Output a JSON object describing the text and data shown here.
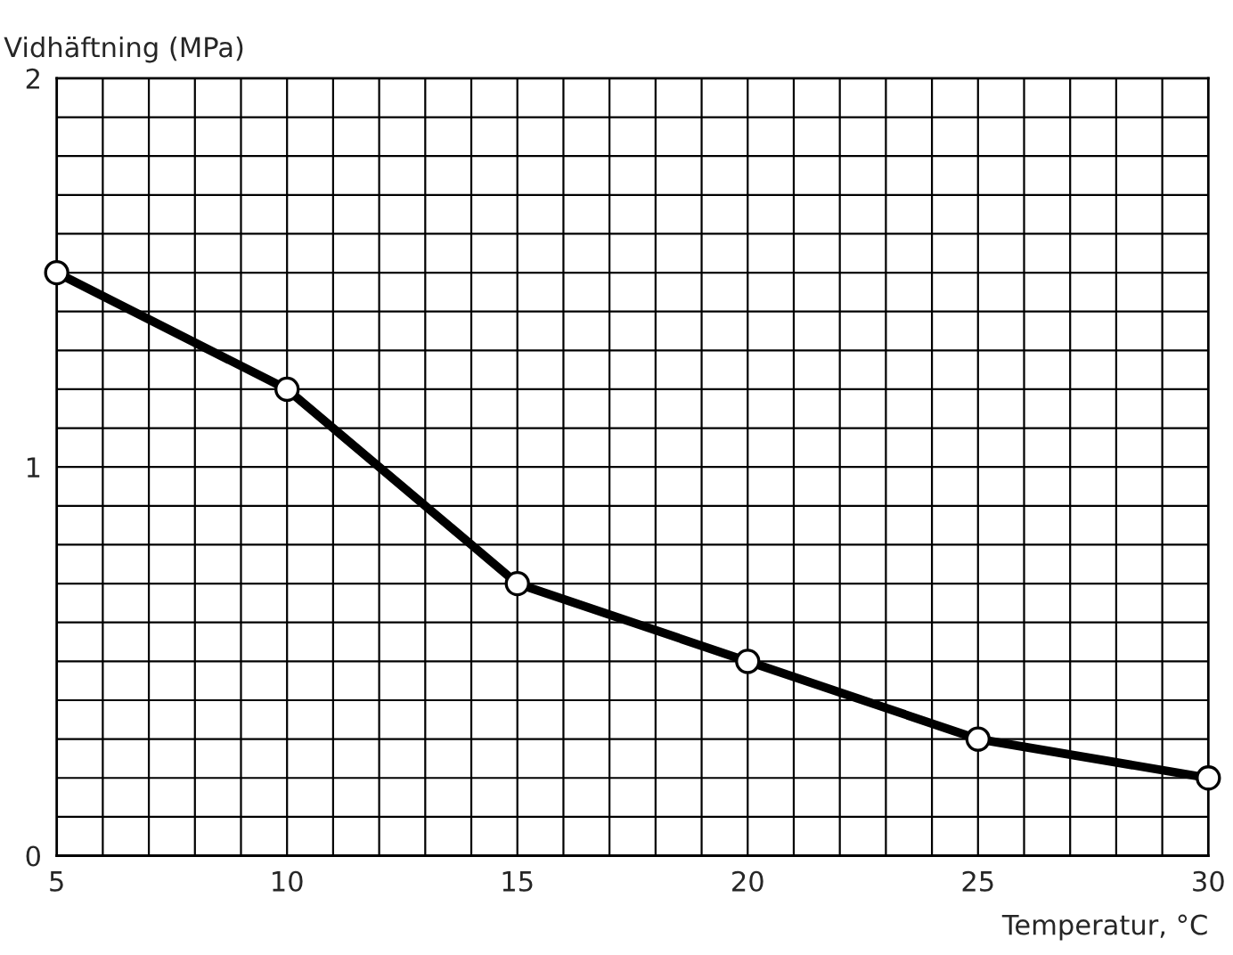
{
  "chart_data": {
    "type": "line",
    "xlabel": "Temperatur, °C",
    "ylabel": "Vidhäftning (MPa)",
    "x": [
      5,
      10,
      15,
      20,
      25,
      30
    ],
    "series": [
      {
        "color": "#000000",
        "values": [
          1.5,
          1.2,
          0.7,
          0.5,
          0.3,
          0.2
        ]
      }
    ],
    "marker": "circle",
    "line_style": "solid",
    "grid": true,
    "legend": false,
    "xlim": [
      5,
      30
    ],
    "ylim": [
      0,
      2
    ],
    "xticks": [
      5,
      {
        "value": 6,
        "label": null
      },
      {
        "value": 7,
        "label": null
      },
      {
        "value": 8,
        "label": null
      },
      {
        "value": 9,
        "label": null
      },
      10,
      {
        "value": 11,
        "label": null
      },
      {
        "value": 12,
        "label": null
      },
      {
        "value": 13,
        "label": null
      },
      {
        "value": 14,
        "label": null
      },
      15,
      {
        "value": 16,
        "label": null
      },
      {
        "value": 17,
        "label": null
      },
      {
        "value": 18,
        "label": null
      },
      {
        "value": 19,
        "label": null
      },
      20,
      {
        "value": 21,
        "label": null
      },
      {
        "value": 22,
        "label": null
      },
      {
        "value": 23,
        "label": null
      },
      {
        "value": 24,
        "label": null
      },
      25,
      {
        "value": 26,
        "label": null
      },
      {
        "value": 27,
        "label": null
      },
      {
        "value": 28,
        "label": null
      },
      {
        "value": 29,
        "label": null
      },
      30
    ],
    "yticks": [
      0,
      {
        "value": 0.1,
        "label": null
      },
      {
        "value": 0.2,
        "label": null
      },
      {
        "value": 0.3,
        "label": null
      },
      {
        "value": 0.4,
        "label": null
      },
      {
        "value": 0.5,
        "label": null
      },
      {
        "value": 0.6,
        "label": null
      },
      {
        "value": 0.7,
        "label": null
      },
      {
        "value": 0.8,
        "label": null
      },
      {
        "value": 0.9,
        "label": null
      },
      1,
      {
        "value": 1.1,
        "label": null
      },
      {
        "value": 1.2,
        "label": null
      },
      {
        "value": 1.3,
        "label": null
      },
      {
        "value": 1.4,
        "label": null
      },
      {
        "value": 1.5,
        "label": null
      },
      {
        "value": 1.6,
        "label": null
      },
      {
        "value": 1.7,
        "label": null
      },
      {
        "value": 1.8,
        "label": null
      },
      {
        "value": 1.9,
        "label": null
      },
      2
    ]
  }
}
